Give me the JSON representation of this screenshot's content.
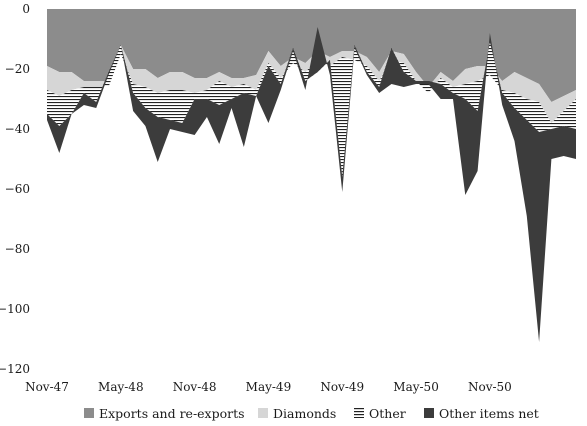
{
  "chart_data": {
    "type": "area",
    "title": "",
    "xlabel": "",
    "ylabel": "",
    "ylim": [
      -120,
      0
    ],
    "y_ticks": [
      0,
      -20,
      -40,
      -60,
      -80,
      -100,
      -120
    ],
    "x_ticks": [
      "Nov-47",
      "May-48",
      "Nov-48",
      "May-49",
      "Nov-49",
      "May-50",
      "Nov-50"
    ],
    "x_start": "Nov-47",
    "x_end": "Dec-50",
    "legend_position": "bottom",
    "grid": false,
    "series": [
      {
        "name": "Exports and re-exports",
        "color": "#8c8c8c",
        "pattern": "solid",
        "values": [
          -19,
          -21,
          -21,
          -24,
          -24,
          -24,
          -12,
          -20,
          -20,
          -23,
          -21,
          -21,
          -23,
          -23,
          -21,
          -23,
          -23,
          -22,
          -14,
          -19,
          -16,
          -18,
          -14,
          -16,
          -14,
          -14,
          -16,
          -21,
          -14,
          -15,
          -21,
          -26,
          -21,
          -24,
          -20,
          -19,
          -19,
          -24,
          -21,
          -23,
          -25,
          -31,
          -29,
          -27
        ]
      },
      {
        "name": "Diamonds",
        "color": "#d6d6d6",
        "pattern": "solid",
        "values": [
          -8,
          -8,
          -6,
          -2,
          -2,
          -2,
          -3,
          -5,
          -6,
          -5,
          -6,
          -6,
          -5,
          -4,
          -3,
          -3,
          -2,
          -5,
          -4,
          -4,
          -2,
          -3,
          -3,
          -3,
          -2,
          -3,
          -3,
          -3,
          -3,
          -3,
          -3,
          -2,
          -2,
          -2,
          -5,
          -5,
          -3,
          -3,
          -7,
          -7,
          -6,
          -7,
          -5,
          -3
        ]
      },
      {
        "name": "Other",
        "color": "#ffffff",
        "pattern": "hatch",
        "values": [
          -8,
          -10,
          -8,
          -2,
          -5,
          5,
          3,
          -3,
          -7,
          -8,
          -10,
          -11,
          -2,
          -3,
          -8,
          -4,
          -3,
          -2,
          -1,
          -2,
          5,
          -3,
          -4,
          2,
          -40,
          5,
          -2,
          -2,
          4,
          -3,
          0,
          4,
          -2,
          -2,
          -5,
          -10,
          11,
          -1,
          -5,
          -7,
          -10,
          -2,
          -5,
          -10
        ]
      },
      {
        "name": "Other items net",
        "color": "#3c3c3c",
        "pattern": "solid",
        "values": [
          -2,
          -9,
          0,
          -4,
          -2,
          -1,
          0,
          -6,
          -6,
          -15,
          -3,
          -3,
          -12,
          -6,
          -13,
          -3,
          -18,
          0,
          -19,
          -2,
          -1,
          -3,
          15,
          -5,
          -5,
          -1,
          -1,
          -2,
          -12,
          -5,
          -1,
          -1,
          -5,
          -2,
          -32,
          -20,
          3,
          -4,
          -11,
          -32,
          -70,
          -10,
          -10,
          -10
        ]
      }
    ]
  }
}
